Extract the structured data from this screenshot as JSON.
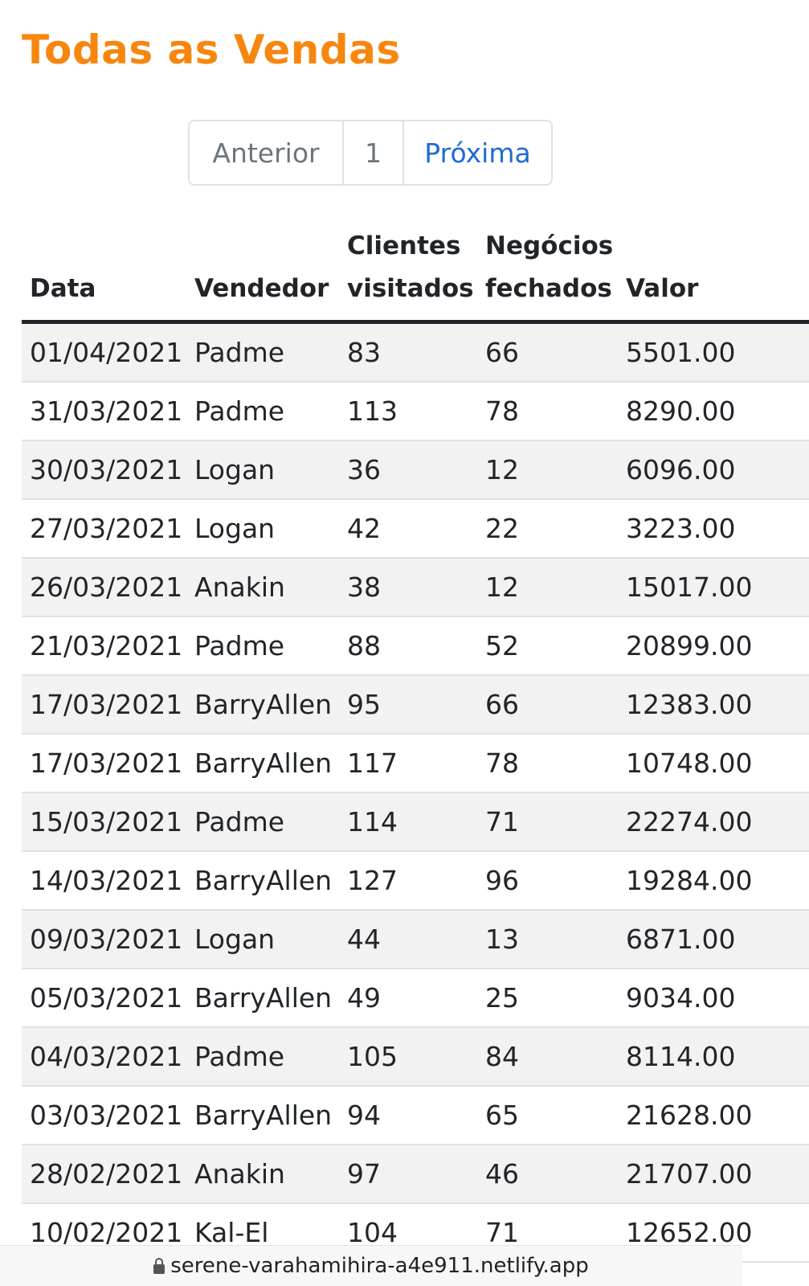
{
  "page": {
    "title": "Todas as Vendas"
  },
  "pagination": {
    "prev_label": "Anterior",
    "current_page": "1",
    "next_label": "Próxima"
  },
  "table": {
    "headers": {
      "data": "Data",
      "vendedor": "Vendedor",
      "clientes": "Clientes visitados",
      "negocios": "Negócios fechados",
      "valor": "Valor"
    },
    "rows": [
      {
        "data": "01/04/2021",
        "vendedor": "Padme",
        "clientes": "83",
        "negocios": "66",
        "valor": "5501.00"
      },
      {
        "data": "31/03/2021",
        "vendedor": "Padme",
        "clientes": "113",
        "negocios": "78",
        "valor": "8290.00"
      },
      {
        "data": "30/03/2021",
        "vendedor": "Logan",
        "clientes": "36",
        "negocios": "12",
        "valor": "6096.00"
      },
      {
        "data": "27/03/2021",
        "vendedor": "Logan",
        "clientes": "42",
        "negocios": "22",
        "valor": "3223.00"
      },
      {
        "data": "26/03/2021",
        "vendedor": "Anakin",
        "clientes": "38",
        "negocios": "12",
        "valor": "15017.00"
      },
      {
        "data": "21/03/2021",
        "vendedor": "Padme",
        "clientes": "88",
        "negocios": "52",
        "valor": "20899.00"
      },
      {
        "data": "17/03/2021",
        "vendedor": "BarryAllen",
        "clientes": "95",
        "negocios": "66",
        "valor": "12383.00"
      },
      {
        "data": "17/03/2021",
        "vendedor": "BarryAllen",
        "clientes": "117",
        "negocios": "78",
        "valor": "10748.00"
      },
      {
        "data": "15/03/2021",
        "vendedor": "Padme",
        "clientes": "114",
        "negocios": "71",
        "valor": "22274.00"
      },
      {
        "data": "14/03/2021",
        "vendedor": "BarryAllen",
        "clientes": "127",
        "negocios": "96",
        "valor": "19284.00"
      },
      {
        "data": "09/03/2021",
        "vendedor": "Logan",
        "clientes": "44",
        "negocios": "13",
        "valor": "6871.00"
      },
      {
        "data": "05/03/2021",
        "vendedor": "BarryAllen",
        "clientes": "49",
        "negocios": "25",
        "valor": "9034.00"
      },
      {
        "data": "04/03/2021",
        "vendedor": "Padme",
        "clientes": "105",
        "negocios": "84",
        "valor": "8114.00"
      },
      {
        "data": "03/03/2021",
        "vendedor": "BarryAllen",
        "clientes": "94",
        "negocios": "65",
        "valor": "21628.00"
      },
      {
        "data": "28/02/2021",
        "vendedor": "Anakin",
        "clientes": "97",
        "negocios": "46",
        "valor": "21707.00"
      },
      {
        "data": "10/02/2021",
        "vendedor": "Kal-El",
        "clientes": "104",
        "negocios": "71",
        "valor": "12652.00"
      }
    ]
  },
  "browser": {
    "url": "serene-varahamihira-a4e911.netlify.app",
    "lock_icon": "lock-icon"
  }
}
